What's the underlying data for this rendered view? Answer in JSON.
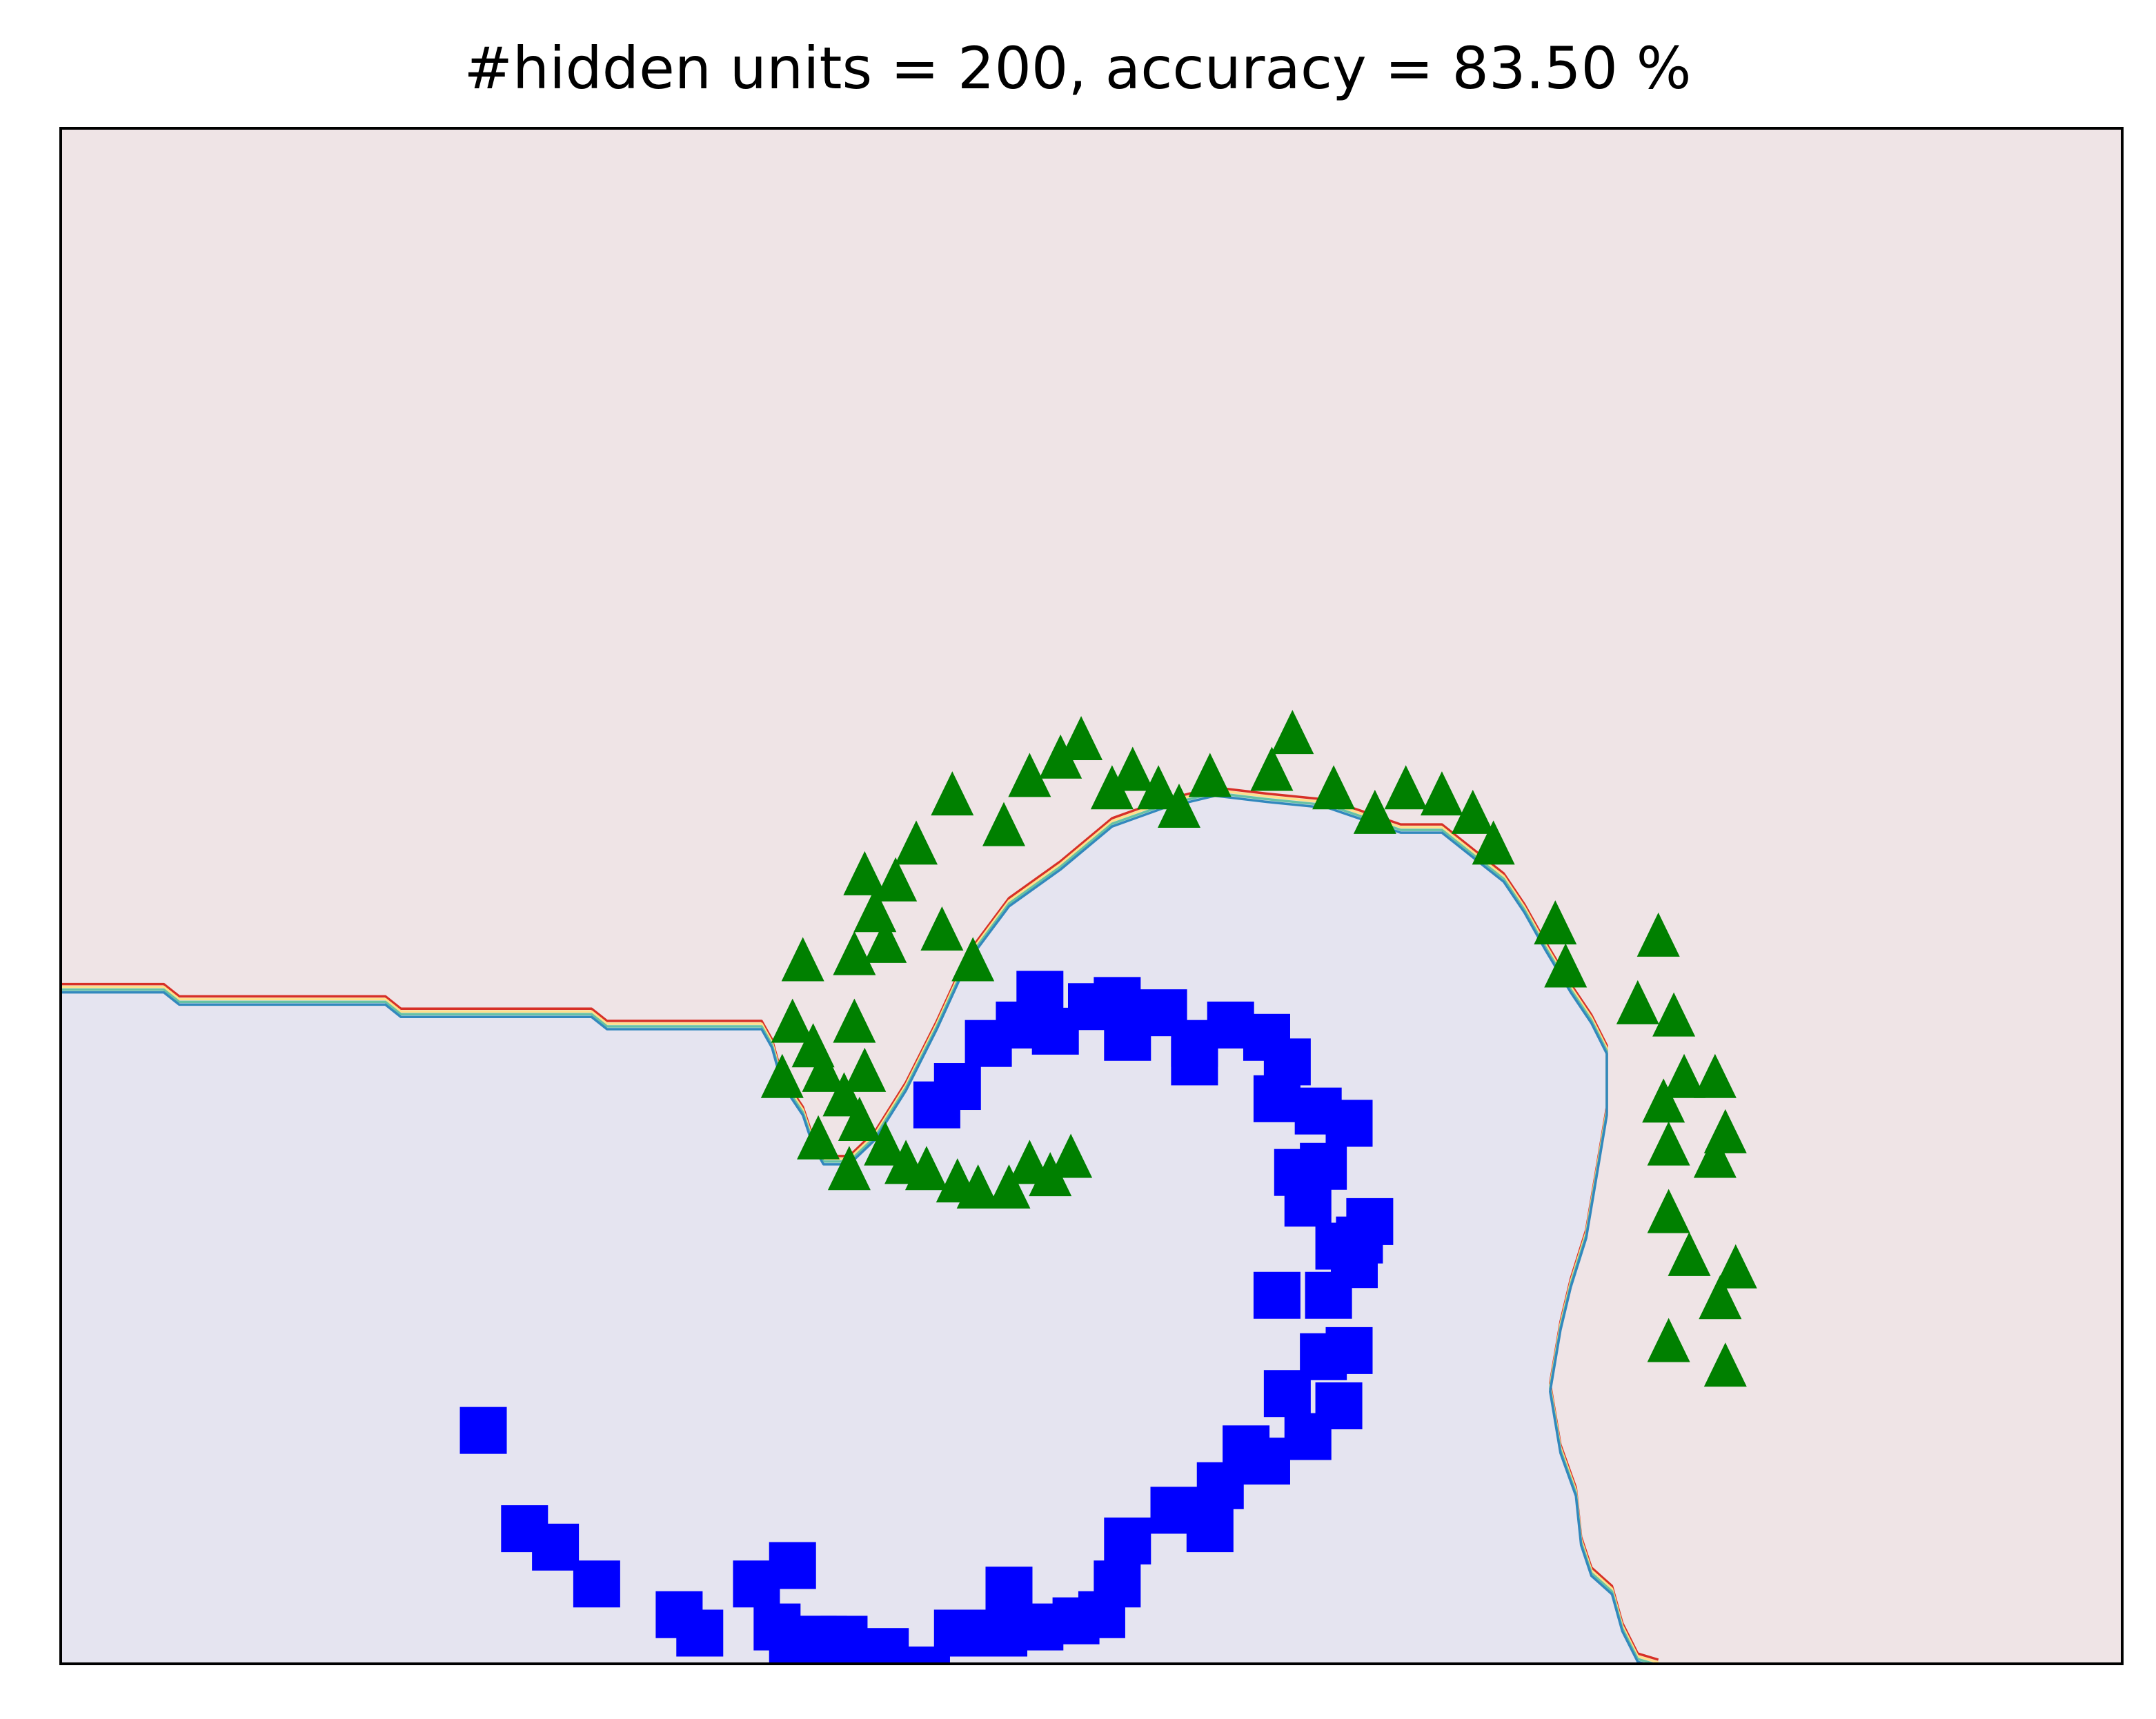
{
  "chart_data": {
    "type": "scatter",
    "title": "#hidden units = 200, accuracy = 83.50 %",
    "xlabel": "",
    "ylabel": "",
    "xlim": [
      -1.5,
      2.5
    ],
    "ylim": [
      -1.0,
      1.5
    ],
    "grid": false,
    "ticks_shown": false,
    "legend": "none",
    "regions": [
      {
        "label": "class 1 region",
        "color": "#efe4e6"
      },
      {
        "label": "class 0 region",
        "color": "#e5e4f0"
      }
    ],
    "boundary": {
      "colors": [
        "#d73027",
        "#fee08b",
        "#66c2a5",
        "#3288bd"
      ],
      "points": [
        [
          -1.5,
          0.1
        ],
        [
          -1.3,
          0.1
        ],
        [
          -1.27,
          0.08
        ],
        [
          -0.87,
          0.08
        ],
        [
          -0.84,
          0.06
        ],
        [
          -0.47,
          0.06
        ],
        [
          -0.44,
          0.04
        ],
        [
          -0.14,
          0.04
        ],
        [
          -0.12,
          0.01
        ],
        [
          -0.1,
          -0.05
        ],
        [
          -0.06,
          -0.1
        ],
        [
          -0.04,
          -0.15
        ],
        [
          -0.02,
          -0.18
        ],
        [
          0.03,
          -0.18
        ],
        [
          0.08,
          -0.14
        ],
        [
          0.14,
          -0.06
        ],
        [
          0.2,
          0.04
        ],
        [
          0.26,
          0.15
        ],
        [
          0.34,
          0.24
        ],
        [
          0.44,
          0.3
        ],
        [
          0.54,
          0.37
        ],
        [
          0.64,
          0.4
        ],
        [
          0.74,
          0.42
        ],
        [
          0.84,
          0.41
        ],
        [
          0.96,
          0.4
        ],
        [
          1.03,
          0.38
        ],
        [
          1.1,
          0.36
        ],
        [
          1.18,
          0.36
        ],
        [
          1.24,
          0.32
        ],
        [
          1.3,
          0.28
        ],
        [
          1.34,
          0.23
        ],
        [
          1.38,
          0.17
        ],
        [
          1.43,
          0.1
        ],
        [
          1.47,
          0.05
        ],
        [
          1.5,
          0.0
        ],
        [
          1.5,
          -0.1
        ],
        [
          1.48,
          -0.2
        ],
        [
          1.46,
          -0.3
        ],
        [
          1.43,
          -0.38
        ],
        [
          1.41,
          -0.45
        ],
        [
          1.39,
          -0.55
        ],
        [
          1.41,
          -0.65
        ],
        [
          1.44,
          -0.72
        ],
        [
          1.45,
          -0.8
        ],
        [
          1.47,
          -0.85
        ],
        [
          1.51,
          -0.88
        ],
        [
          1.53,
          -0.94
        ],
        [
          1.56,
          -0.99
        ],
        [
          1.6,
          -1.0
        ]
      ]
    },
    "series": [
      {
        "marker": "square",
        "color": "#0000ff",
        "points": [
          [
            -0.68,
            -0.62
          ],
          [
            -0.6,
            -0.78
          ],
          [
            -0.54,
            -0.81
          ],
          [
            -0.46,
            -0.87
          ],
          [
            -0.3,
            -0.92
          ],
          [
            -0.26,
            -0.95
          ],
          [
            -0.15,
            -0.87
          ],
          [
            -0.11,
            -0.94
          ],
          [
            -0.08,
            -0.98
          ],
          [
            -0.04,
            -0.96
          ],
          [
            0.02,
            -0.96
          ],
          [
            0.1,
            -0.98
          ],
          [
            0.18,
            -1.01
          ],
          [
            -0.08,
            -0.84
          ],
          [
            -0.02,
            -0.96
          ],
          [
            0.24,
            -0.95
          ],
          [
            0.34,
            -0.88
          ],
          [
            0.33,
            -0.95
          ],
          [
            0.4,
            -0.94
          ],
          [
            0.47,
            -0.93
          ],
          [
            0.52,
            -0.92
          ],
          [
            0.55,
            -0.87
          ],
          [
            0.57,
            -0.8
          ],
          [
            0.66,
            -0.75
          ],
          [
            0.73,
            -0.78
          ],
          [
            0.75,
            -0.71
          ],
          [
            0.8,
            -0.65
          ],
          [
            0.84,
            -0.67
          ],
          [
            0.88,
            -0.56
          ],
          [
            0.92,
            -0.63
          ],
          [
            0.95,
            -0.5
          ],
          [
            0.98,
            -0.58
          ],
          [
            1.0,
            -0.49
          ],
          [
            0.86,
            -0.4
          ],
          [
            0.98,
            -0.32
          ],
          [
            1.01,
            -0.35
          ],
          [
            1.02,
            -0.31
          ],
          [
            1.04,
            -0.28
          ],
          [
            0.95,
            -0.19
          ],
          [
            0.9,
            -0.2
          ],
          [
            0.86,
            -0.08
          ],
          [
            0.84,
            0.02
          ],
          [
            0.77,
            0.04
          ],
          [
            0.7,
            0.01
          ],
          [
            0.64,
            0.06
          ],
          [
            0.57,
            0.02
          ],
          [
            0.5,
            0.07
          ],
          [
            0.43,
            0.03
          ],
          [
            0.36,
            0.04
          ],
          [
            0.3,
            0.01
          ],
          [
            0.24,
            -0.06
          ],
          [
            0.2,
            -0.09
          ],
          [
            0.4,
            0.09
          ],
          [
            0.55,
            0.08
          ],
          [
            0.7,
            -0.02
          ],
          [
            0.88,
            -0.02
          ],
          [
            0.94,
            -0.1
          ],
          [
            1.0,
            -0.12
          ],
          [
            0.92,
            -0.25
          ],
          [
            0.96,
            -0.4
          ]
        ]
      },
      {
        "marker": "triangle",
        "color": "#008000",
        "points": [
          [
            -0.1,
            -0.05
          ],
          [
            -0.08,
            0.04
          ],
          [
            -0.06,
            0.14
          ],
          [
            -0.04,
            0.0
          ],
          [
            -0.02,
            -0.04
          ],
          [
            -0.03,
            -0.15
          ],
          [
            0.03,
            -0.2
          ],
          [
            0.05,
            -0.12
          ],
          [
            0.06,
            -0.04
          ],
          [
            0.04,
            0.04
          ],
          [
            0.04,
            0.15
          ],
          [
            0.06,
            0.28
          ],
          [
            0.08,
            0.22
          ],
          [
            0.1,
            0.17
          ],
          [
            0.12,
            0.27
          ],
          [
            0.16,
            0.33
          ],
          [
            0.21,
            0.19
          ],
          [
            0.23,
            0.41
          ],
          [
            0.27,
            0.14
          ],
          [
            0.33,
            0.36
          ],
          [
            0.38,
            0.44
          ],
          [
            0.44,
            0.47
          ],
          [
            0.48,
            0.5
          ],
          [
            0.54,
            0.42
          ],
          [
            0.58,
            0.45
          ],
          [
            0.63,
            0.42
          ],
          [
            0.67,
            0.39
          ],
          [
            0.73,
            0.44
          ],
          [
            0.85,
            0.45
          ],
          [
            0.89,
            0.51
          ],
          [
            0.97,
            0.42
          ],
          [
            1.05,
            0.38
          ],
          [
            1.11,
            0.42
          ],
          [
            1.18,
            0.41
          ],
          [
            1.24,
            0.38
          ],
          [
            1.28,
            0.33
          ],
          [
            1.4,
            0.2
          ],
          [
            1.42,
            0.13
          ],
          [
            1.56,
            0.07
          ],
          [
            1.6,
            0.18
          ],
          [
            1.63,
            0.05
          ],
          [
            1.65,
            -0.05
          ],
          [
            1.61,
            -0.09
          ],
          [
            1.62,
            -0.16
          ],
          [
            1.71,
            -0.05
          ],
          [
            1.73,
            -0.14
          ],
          [
            1.71,
            -0.18
          ],
          [
            1.62,
            -0.27
          ],
          [
            1.66,
            -0.34
          ],
          [
            1.72,
            -0.41
          ],
          [
            1.75,
            -0.36
          ],
          [
            1.62,
            -0.48
          ],
          [
            1.73,
            -0.52
          ],
          [
            0.18,
            -0.2
          ],
          [
            0.24,
            -0.22
          ],
          [
            0.28,
            -0.23
          ],
          [
            0.34,
            -0.23
          ],
          [
            0.38,
            -0.19
          ],
          [
            0.42,
            -0.21
          ],
          [
            0.46,
            -0.18
          ],
          [
            0.1,
            -0.16
          ],
          [
            0.14,
            -0.19
          ],
          [
            0.02,
            -0.08
          ]
        ]
      }
    ]
  }
}
